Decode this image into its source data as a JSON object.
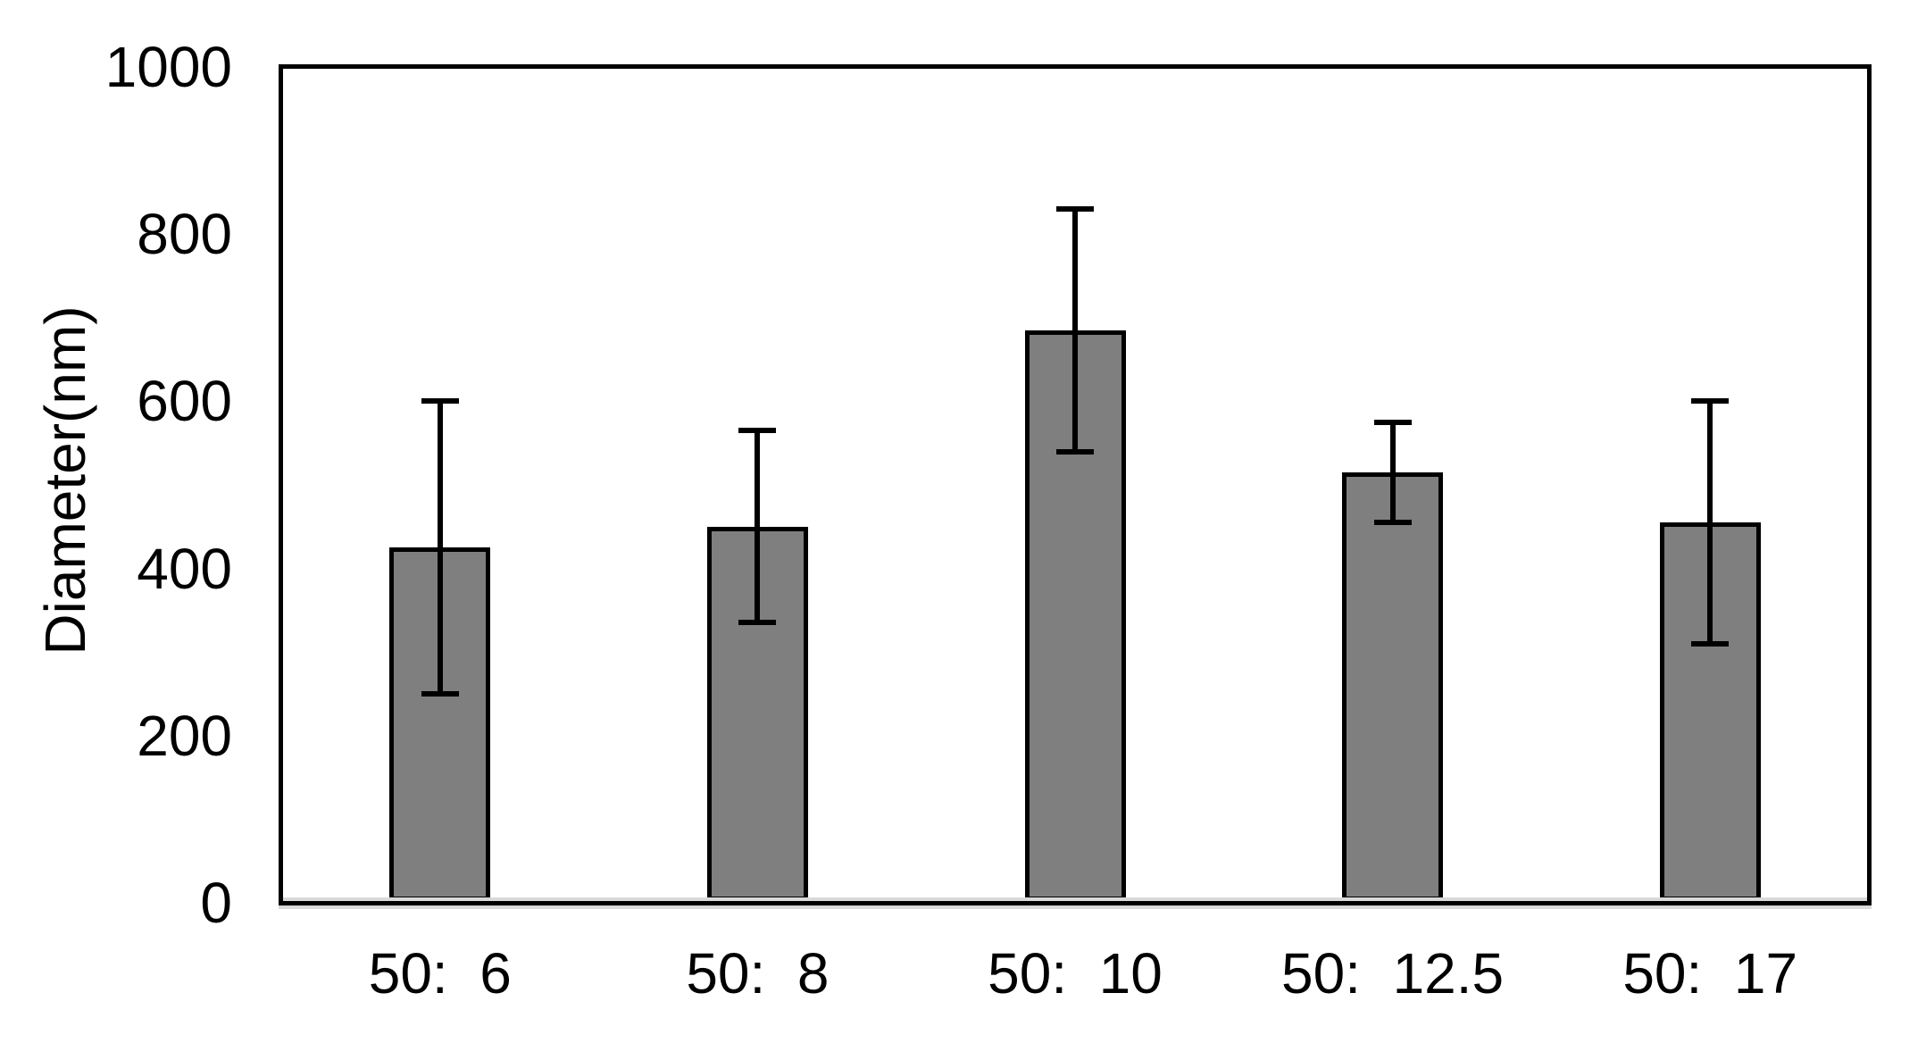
{
  "chart_data": {
    "type": "bar",
    "title": "",
    "xlabel": "",
    "ylabel": "Diameter(nm)",
    "ylim": [
      0,
      1000
    ],
    "yticks": [
      0,
      200,
      400,
      600,
      800,
      1000
    ],
    "categories": [
      "50:  6",
      "50:  8",
      "50:  10",
      "50:  12.5",
      "50:  17"
    ],
    "series": [
      {
        "name": "Diameter",
        "values": [
          425,
          450,
          685,
          515,
          455
        ],
        "error_bars": [
          175,
          115,
          145,
          60,
          145
        ]
      }
    ],
    "grid": false,
    "legend_position": "none",
    "bar_fill_color": "#7f7f7f",
    "bar_border_color": "#000000",
    "error_bar_color": "#000000",
    "axis_frame_color": "#000000",
    "axis_shadow_color": "#d9d9d9",
    "text_color": "#000000",
    "background_color": "#ffffff"
  }
}
